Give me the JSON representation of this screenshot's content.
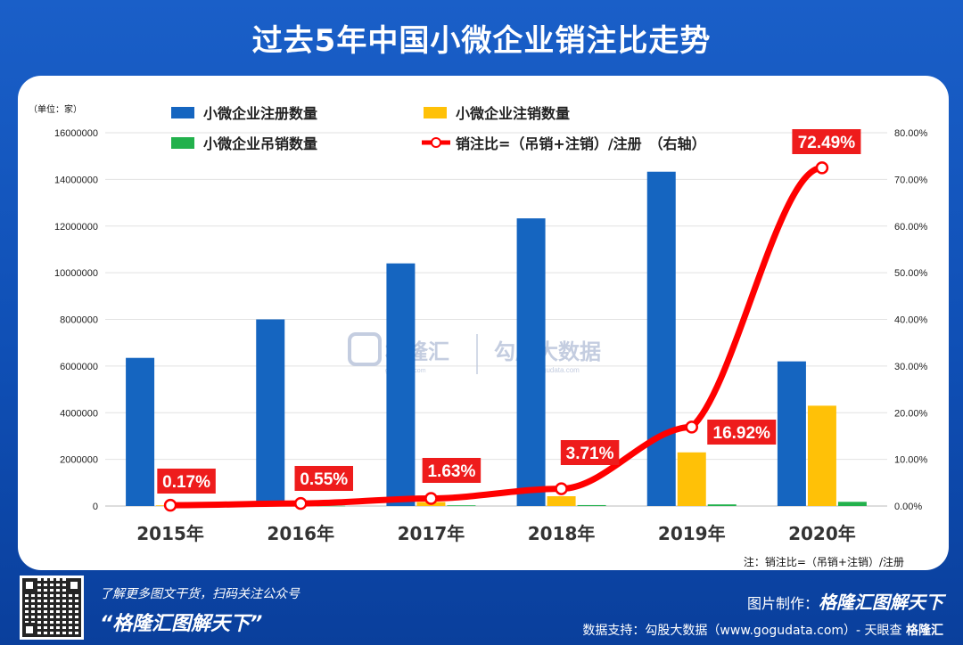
{
  "header": {
    "title": "过去5年中国小微企业销注比走势"
  },
  "chart_data": {
    "type": "bar",
    "unit_label": "（单位：家）",
    "categories": [
      "2015年",
      "2016年",
      "2017年",
      "2018年",
      "2019年",
      "2020年"
    ],
    "series": [
      {
        "name": "小微企业注册数量",
        "color": "#1565c0",
        "values": [
          6350000,
          8000000,
          10400000,
          12330000,
          14330000,
          6200000
        ]
      },
      {
        "name": "小微企业注销数量",
        "color": "#ffc107",
        "values": [
          30000,
          20000,
          170000,
          420000,
          2300000,
          4300000
        ]
      },
      {
        "name": "小微企业吊销数量",
        "color": "#22b14c",
        "values": [
          5000,
          8000,
          30000,
          40000,
          70000,
          180000
        ]
      }
    ],
    "line_series": {
      "name": "销注比=（吊销+注销）/注册　（右轴）",
      "color": "#ff0000",
      "values": [
        0.17,
        0.55,
        1.63,
        3.71,
        16.92,
        72.49
      ],
      "labels": [
        "0.17%",
        "0.55%",
        "1.63%",
        "3.71%",
        "16.92%",
        "72.49%"
      ]
    },
    "y_left": {
      "min": 0,
      "max": 16000000,
      "ticks": [
        "0",
        "2000000",
        "4000000",
        "6000000",
        "8000000",
        "10000000",
        "12000000",
        "14000000",
        "16000000"
      ]
    },
    "y_right": {
      "min": 0,
      "max": 80,
      "ticks": [
        "0.00%",
        "10.00%",
        "20.00%",
        "30.00%",
        "40.00%",
        "50.00%",
        "60.00%",
        "70.00%",
        "80.00%"
      ]
    },
    "grid": true,
    "legend_position": "top"
  },
  "watermark": {
    "brand1": "格隆汇",
    "brand1_sub": "gelonghui.com",
    "brand2": "勾股大数据",
    "brand2_sub": "www.gogudata.com"
  },
  "note": "注：销注比=（吊销+注销）/注册",
  "footer": {
    "line1": "了解更多图文干货，扫码关注公众号",
    "line2": "“格隆汇图解天下”",
    "maker_prefix": "图片制作：",
    "maker": "格隆汇图解天下",
    "source": "数据支持：勾股大数据（www.gogudata.com）- 天眼查",
    "corner_logo": "格隆汇"
  }
}
